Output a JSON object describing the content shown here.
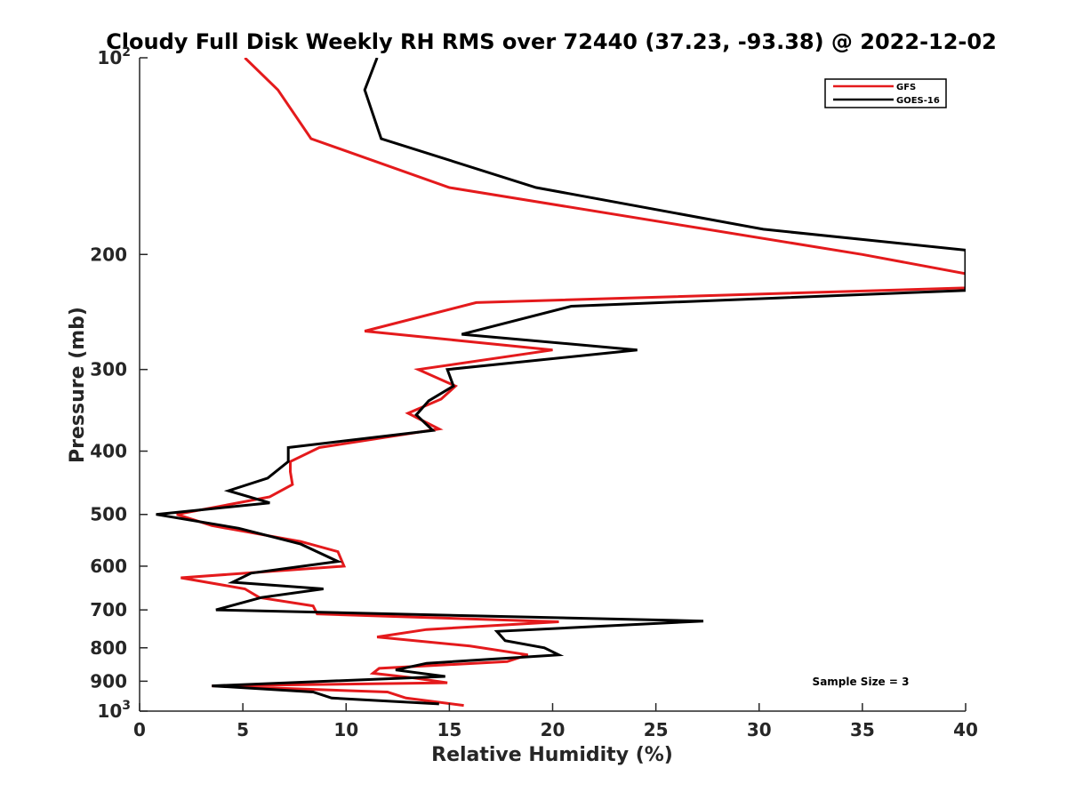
{
  "chart_data": {
    "type": "line",
    "title": "Cloudy Full Disk Weekly RH RMS over 72440 (37.23, -93.38) @ 2022-12-02",
    "xlabel": "Relative Humidity (%)",
    "ylabel": "Pressure (mb)",
    "xlim": [
      0,
      40
    ],
    "ylim": [
      100,
      1000
    ],
    "y_scale": "log",
    "y_reversed": true,
    "grid": false,
    "legend_position": "top-right",
    "annotation": "Sample Size = 3",
    "x_ticks": [
      {
        "value": 0,
        "label": "0"
      },
      {
        "value": 5,
        "label": "5"
      },
      {
        "value": 10,
        "label": "10"
      },
      {
        "value": 15,
        "label": "15"
      },
      {
        "value": 20,
        "label": "20"
      },
      {
        "value": 25,
        "label": "25"
      },
      {
        "value": 30,
        "label": "30"
      },
      {
        "value": 35,
        "label": "35"
      },
      {
        "value": 40,
        "label": "40"
      }
    ],
    "y_ticks": [
      {
        "value": 100,
        "base": "10",
        "exp": "2"
      },
      {
        "value": 200,
        "label": "200"
      },
      {
        "value": 300,
        "label": "300"
      },
      {
        "value": 400,
        "label": "400"
      },
      {
        "value": 500,
        "label": "500"
      },
      {
        "value": 600,
        "label": "600"
      },
      {
        "value": 700,
        "label": "700"
      },
      {
        "value": 800,
        "label": "800"
      },
      {
        "value": 900,
        "label": "900"
      },
      {
        "value": 1000,
        "base": "10",
        "exp": "3"
      }
    ],
    "series": [
      {
        "name": "GFS",
        "color": "#e41a1c",
        "x": [
          5.1,
          6.7,
          8.3,
          15.0,
          35.0,
          40.0,
          40.0,
          16.3,
          10.9,
          20.0,
          13.5,
          15.3,
          14.6,
          13.0,
          14.5,
          8.7,
          7.3,
          7.3,
          7.4,
          6.3,
          1.8,
          3.5,
          7.8,
          9.6,
          9.9,
          2.0,
          5.1,
          5.8,
          8.4,
          8.6,
          20.3,
          13.9,
          11.5,
          16.0,
          18.8,
          17.8,
          11.6,
          11.3,
          13.3,
          14.9,
          3.5,
          12.0,
          12.9,
          15.7
        ],
        "y": [
          100,
          112,
          133,
          158,
          200,
          214,
          225,
          237,
          262,
          280,
          300,
          318,
          333,
          350,
          370,
          395,
          415,
          430,
          450,
          470,
          500,
          520,
          550,
          570,
          600,
          625,
          650,
          670,
          690,
          710,
          730,
          750,
          770,
          795,
          820,
          840,
          860,
          875,
          890,
          905,
          915,
          935,
          955,
          980
        ]
      },
      {
        "name": "GOES-16",
        "color": "#000000",
        "x": [
          11.5,
          10.9,
          11.7,
          19.2,
          30.2,
          40.0,
          40.0,
          20.9,
          15.6,
          24.1,
          14.9,
          15.2,
          14.0,
          13.4,
          14.2,
          7.2,
          7.2,
          6.2,
          4.3,
          6.3,
          0.8,
          4.8,
          7.8,
          9.6,
          5.4,
          4.5,
          8.9,
          5.9,
          3.7,
          27.3,
          17.3,
          17.7,
          19.6,
          20.3,
          13.9,
          12.4,
          14.8,
          3.5,
          8.4,
          9.3,
          14.5
        ],
        "y": [
          100,
          112,
          133,
          158,
          183,
          197,
          227,
          240,
          265,
          280,
          300,
          318,
          335,
          352,
          372,
          395,
          415,
          440,
          460,
          480,
          500,
          525,
          555,
          590,
          615,
          635,
          650,
          670,
          700,
          728,
          755,
          780,
          800,
          820,
          845,
          865,
          885,
          915,
          935,
          955,
          975
        ]
      }
    ]
  }
}
